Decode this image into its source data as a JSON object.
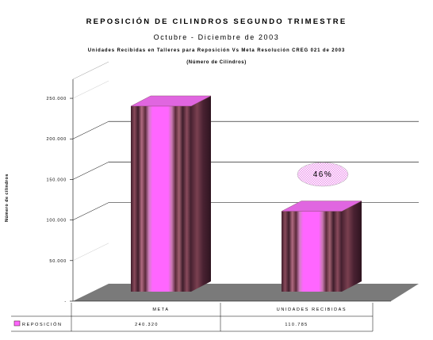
{
  "chart_data": {
    "type": "bar",
    "title": "REPOSICIÓN DE CILINDROS SEGUNDO TRIMESTRE",
    "subtitle": "Octubre - Diciembre de 2003",
    "subtitle2": "Unidades Recibidas en Talleres para Reposición Vs Meta Resolución CREG 021 de 2003",
    "subtitle3": "(Número de Cilindros)",
    "ylabel": "Número de cilindros",
    "xlabel": "",
    "categories": [
      "META",
      "UNIDADES RECIBIDAS"
    ],
    "series": [
      {
        "name": "REPOSICIÓN",
        "values": [
          240320,
          110785
        ]
      }
    ],
    "table_values": [
      "240.320",
      "110.785"
    ],
    "yticks": [
      0,
      50000,
      100000,
      150000,
      200000,
      250000
    ],
    "ytick_labels": [
      "-",
      "50.000",
      "100.000",
      "150.000",
      "200.000",
      "250.000"
    ],
    "ylim": [
      0,
      250000
    ],
    "annotation": "46%",
    "grid": true,
    "legend": "data-table-left",
    "colors": {
      "bar_face": "#ff66ff",
      "bar_stripe_dark": "#5a2a3a",
      "bar_stripe_mid": "#a06070",
      "floor": "#7a7a7a",
      "annotation_fill": "#f4c6f4"
    }
  }
}
